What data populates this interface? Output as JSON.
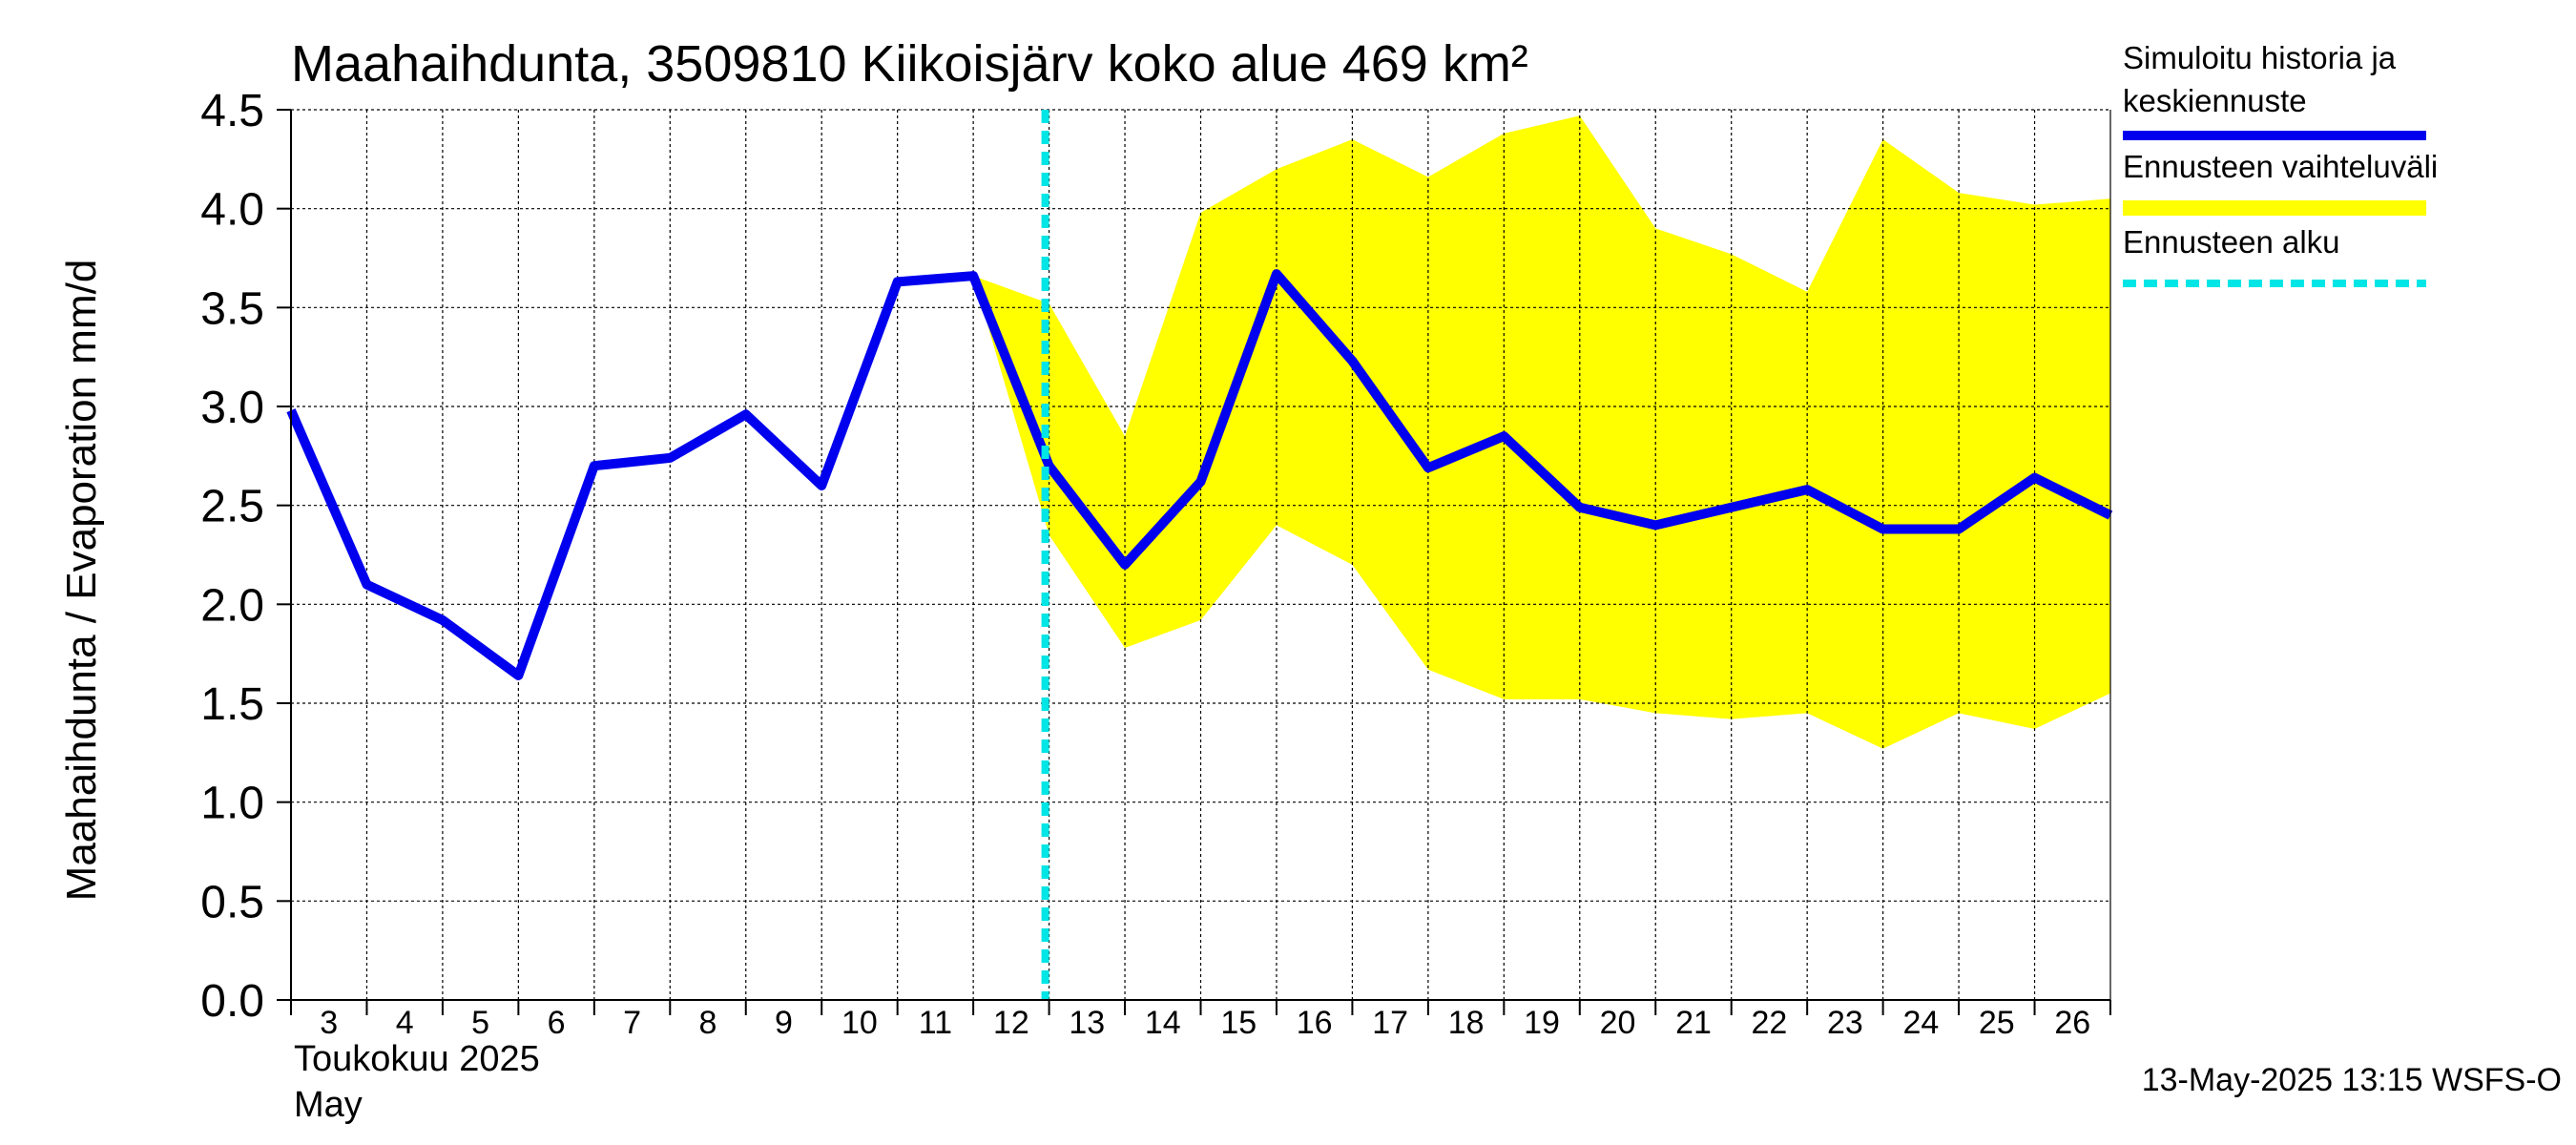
{
  "chart_data": {
    "type": "line",
    "title": "Maahaihdunta, 3509810 Kiikoisjärv koko alue 469 km²",
    "ylabel": "Maahaihdunta / Evaporation   mm/d",
    "xlabel_line1": "Toukokuu  2025",
    "xlabel_line2": "May",
    "ylim": [
      0,
      4.5
    ],
    "yticks": [
      "0.0",
      "0.5",
      "1.0",
      "1.5",
      "2.0",
      "2.5",
      "3.0",
      "3.5",
      "4.0",
      "4.5"
    ],
    "xlim": [
      3,
      27
    ],
    "xticks": [
      "3",
      "4",
      "5",
      "6",
      "7",
      "8",
      "9",
      "10",
      "11",
      "12",
      "13",
      "14",
      "15",
      "16",
      "17",
      "18",
      "19",
      "20",
      "21",
      "22",
      "23",
      "24",
      "25",
      "26"
    ],
    "grid": true,
    "legend_position": "right",
    "legend": [
      {
        "label_line1": "Simuloitu historia ja",
        "label_line2": "keskiennuste",
        "style": "line",
        "color": "#0000ee"
      },
      {
        "label_line1": "Ennusteen vaihteluväli",
        "label_line2": "",
        "style": "band",
        "color": "#ffff00"
      },
      {
        "label_line1": "Ennusteen alku",
        "label_line2": "",
        "style": "dashed",
        "color": "#00e5e5"
      }
    ],
    "series": [
      {
        "name": "Simuloitu historia ja keskiennuste",
        "color": "#0000ee",
        "x": [
          3,
          4,
          5,
          6,
          7,
          8,
          9,
          10,
          11,
          12,
          13,
          14,
          15,
          16,
          17,
          18,
          19,
          20,
          21,
          22,
          23,
          24,
          25,
          26,
          27
        ],
        "y": [
          2.98,
          2.1,
          1.92,
          1.64,
          2.7,
          2.74,
          2.96,
          2.6,
          3.63,
          3.66,
          2.7,
          2.2,
          2.62,
          3.67,
          3.23,
          2.69,
          2.85,
          2.49,
          2.4,
          2.49,
          2.58,
          2.38,
          2.38,
          2.64,
          2.45
        ]
      }
    ],
    "band": {
      "name": "Ennusteen vaihteluväli",
      "color": "#ffff00",
      "x": [
        12,
        13,
        14,
        15,
        16,
        17,
        18,
        19,
        20,
        21,
        22,
        23,
        24,
        25,
        26,
        27
      ],
      "upper": [
        3.66,
        3.52,
        2.85,
        3.98,
        4.2,
        4.35,
        4.16,
        4.38,
        4.47,
        3.9,
        3.77,
        3.58,
        4.35,
        4.08,
        4.02,
        4.05
      ],
      "lower": [
        3.66,
        2.35,
        1.78,
        1.92,
        2.4,
        2.2,
        1.67,
        1.52,
        1.52,
        1.45,
        1.42,
        1.45,
        1.27,
        1.45,
        1.37,
        1.55
      ]
    },
    "forecast_start_x": 13
  },
  "footer": {
    "timestamp": "13-May-2025 13:15 WSFS-O"
  }
}
